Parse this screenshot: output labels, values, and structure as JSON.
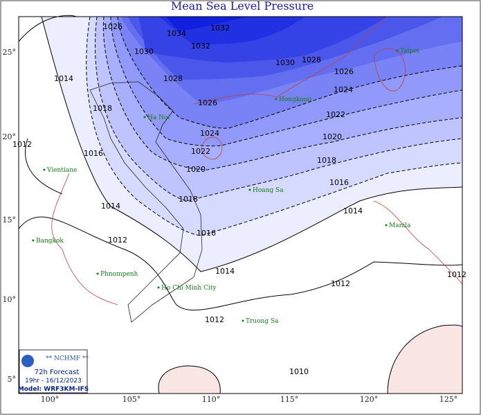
{
  "title": "Mean Sea Level Pressure",
  "lon_labels": [
    "100°",
    "105°",
    "110°",
    "115°",
    "120°",
    "125°"
  ],
  "lat_labels": [
    "25°",
    "20°",
    "15°",
    "10°",
    "5°"
  ],
  "contour_labels": [
    "1034",
    "1032",
    "1030",
    "1028",
    "1026",
    "1024",
    "1022",
    "1020",
    "1018",
    "1016",
    "1014",
    "1012",
    "1014",
    "1012",
    "1016",
    "1018",
    "1014",
    "1012",
    "1032",
    "1030",
    "1028",
    "1026",
    "1024",
    "1022",
    "1020",
    "1018",
    "1016",
    "1014",
    "1012",
    "1010",
    "1012",
    "1026"
  ],
  "places": [
    "Taipei",
    "Hongkong",
    "Ha Noi",
    "Vientiane",
    "Hoang Sa",
    "Manila",
    "Bangkok",
    "Phnompenh",
    "Ho Chi Minh City",
    "Truong Sa"
  ],
  "info": {
    "org": "** NCHMF **",
    "forecast": "72h Forecast",
    "time": "19hr - 16/12/2023",
    "model": "Model: WRF3KM-IFS"
  }
}
